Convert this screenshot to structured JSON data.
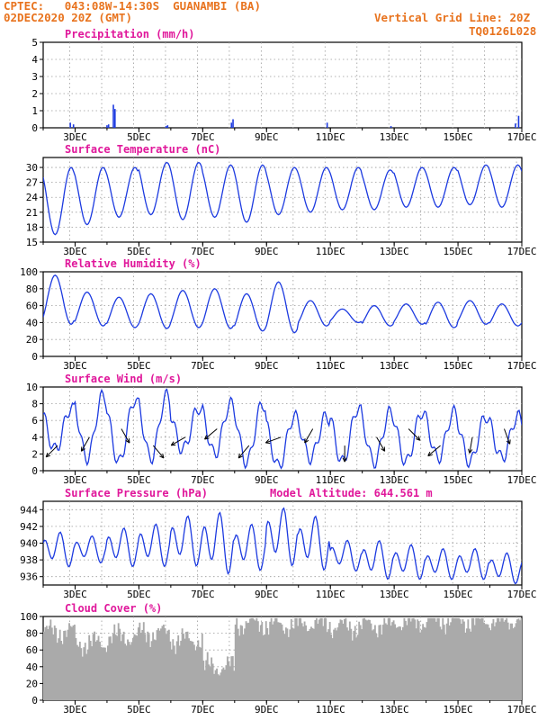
{
  "header": {
    "station": "CPTEC:   043:08W-14:30S  GUANAMBI (BA)",
    "run": "02DEC2020 20Z (GMT)",
    "grid_note": "Vertical Grid Line: 20Z",
    "model_code": "TQ0126L028"
  },
  "colors": {
    "header": "#e8731e",
    "title": "#e0189b",
    "line": "#1c3ae0",
    "cloud": "#aaaaaa",
    "grid": "#9a9a9a"
  },
  "x_labels": [
    "3DEC",
    "5DEC",
    "7DEC",
    "9DEC",
    "11DEC",
    "13DEC",
    "15DEC",
    "17DEC"
  ],
  "chart_data": [
    {
      "type": "bar",
      "title": "Precipitation (mm/h)",
      "ylim": [
        0,
        5
      ],
      "yticks": [
        "0",
        "1",
        "2",
        "3",
        "4",
        "5"
      ],
      "x": [
        0.85,
        0.95,
        2.0,
        2.05,
        2.2,
        2.25,
        3.85,
        3.9,
        5.9,
        5.95,
        8.9,
        10.9,
        14.8,
        14.9
      ],
      "values": [
        0.3,
        0.2,
        0.15,
        0.2,
        1.35,
        1.1,
        0.1,
        0.15,
        0.3,
        0.5,
        0.3,
        0.1,
        0.25,
        0.7
      ]
    },
    {
      "type": "line",
      "title": "Surface Temperature (nC)",
      "ylim": [
        15,
        32
      ],
      "yticks": [
        "15",
        "18",
        "21",
        "24",
        "27",
        "30"
      ],
      "daily_min": [
        16.5,
        18.5,
        20.0,
        20.5,
        19.5,
        20.0,
        19.0,
        20.5,
        21.0,
        21.5,
        21.5,
        22.0,
        22.0,
        22.5,
        22.0
      ],
      "daily_max": [
        30.0,
        30.0,
        30.0,
        31.0,
        31.0,
        30.5,
        30.5,
        30.0,
        30.0,
        30.0,
        29.5,
        30.0,
        30.0,
        30.5,
        30.5
      ]
    },
    {
      "type": "line",
      "title": "Relative Humidity (%)",
      "ylim": [
        0,
        100
      ],
      "yticks": [
        "0",
        "20",
        "40",
        "60",
        "80",
        "100"
      ],
      "daily_max": [
        96,
        76,
        70,
        74,
        78,
        80,
        74,
        88,
        66,
        56,
        60,
        62,
        64,
        66,
        62
      ],
      "daily_min": [
        38,
        36,
        34,
        33,
        34,
        33,
        30,
        28,
        36,
        40,
        36,
        38,
        34,
        38,
        36
      ]
    },
    {
      "type": "line",
      "title": "Surface Wind (m/s)",
      "ylim": [
        0,
        10
      ],
      "yticks": [
        "0",
        "2",
        "4",
        "6",
        "8",
        "10"
      ],
      "daily_max": [
        7.5,
        9.0,
        8.5,
        9.0,
        7.5,
        8.0,
        8.0,
        6.5,
        6.5,
        7.5,
        7.0,
        7.0,
        7.0,
        6.5,
        6.5
      ],
      "daily_min": [
        2.5,
        1.5,
        1.0,
        1.5,
        2.5,
        2.0,
        1.0,
        0.5,
        1.5,
        1.0,
        1.0,
        1.0,
        1.5,
        1.0,
        1.5
      ]
    },
    {
      "type": "line",
      "title": "Surface Pressure (hPa)",
      "ylim": [
        935,
        945
      ],
      "yticks": [
        "936",
        "938",
        "940",
        "942",
        "944"
      ],
      "annotation": "Model Altitude: 644.561  m",
      "daily_max": [
        941.5,
        941.0,
        942.0,
        942.5,
        943.5,
        944.0,
        942.5,
        944.5,
        943.5,
        940.5,
        940.5,
        940.0,
        939.5,
        939.5,
        939.0
      ],
      "daily_min": [
        937.0,
        937.5,
        937.0,
        937.0,
        937.0,
        936.0,
        936.5,
        937.0,
        936.5,
        936.5,
        935.5,
        935.5,
        935.5,
        935.5,
        935.0
      ]
    },
    {
      "type": "bar",
      "title": "Cloud Cover (%)",
      "ylim": [
        0,
        100
      ],
      "yticks": [
        "0",
        "20",
        "40",
        "60",
        "80",
        "100"
      ],
      "daily_mean": [
        82,
        68,
        76,
        80,
        72,
        40,
        92,
        90,
        92,
        88,
        90,
        94,
        96,
        95,
        96
      ]
    }
  ]
}
